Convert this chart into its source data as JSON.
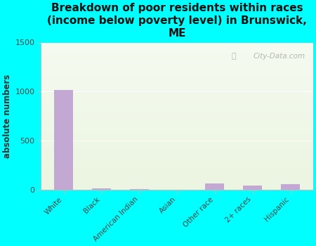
{
  "title": "Breakdown of poor residents within races\n(income below poverty level) in Brunswick,\nME",
  "ylabel": "absolute numbers",
  "categories": [
    "White",
    "Black",
    "American Indian",
    "Asian",
    "Other race",
    "2+ races",
    "Hispanic"
  ],
  "values": [
    1020,
    12,
    5,
    3,
    65,
    45,
    58
  ],
  "bar_color": "#c4a8d4",
  "ylim": [
    0,
    1500
  ],
  "yticks": [
    0,
    500,
    1000,
    1500
  ],
  "background_color": "#00ffff",
  "watermark": "City-Data.com"
}
